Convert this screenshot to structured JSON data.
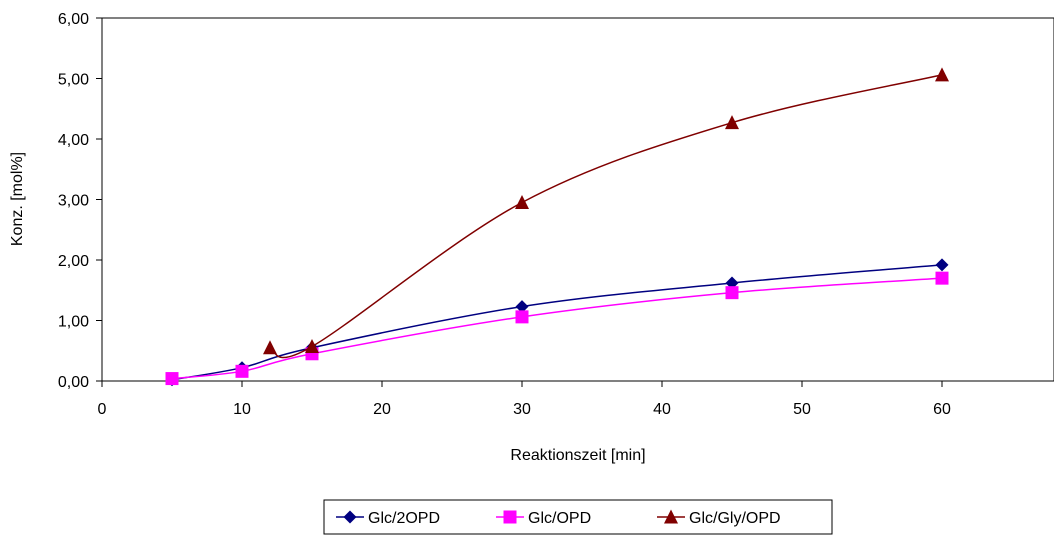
{
  "chart_data": {
    "type": "line",
    "title": "",
    "xlabel": "Reaktionszeit [min]",
    "ylabel": "Konz. [mol%]",
    "xlim": [
      0,
      68
    ],
    "ylim": [
      0,
      6
    ],
    "x_ticks": [
      0,
      10,
      20,
      30,
      40,
      50,
      60
    ],
    "x_tick_labels": [
      "0",
      "10",
      "20",
      "30",
      "40",
      "50",
      "60"
    ],
    "y_ticks": [
      0,
      1,
      2,
      3,
      4,
      5,
      6
    ],
    "y_tick_labels": [
      "0,00",
      "1,00",
      "2,00",
      "3,00",
      "4,00",
      "5,00",
      "6,00"
    ],
    "grid": false,
    "legend_position": "bottom",
    "series": [
      {
        "name": "Glc/2OPD",
        "color": "#000080",
        "marker": "diamond",
        "x": [
          5,
          10,
          15,
          30,
          45,
          60
        ],
        "y": [
          0.02,
          0.22,
          0.55,
          1.23,
          1.62,
          1.92
        ]
      },
      {
        "name": "Glc/OPD",
        "color": "#FF00FF",
        "marker": "square",
        "x": [
          5,
          10,
          15,
          30,
          45,
          60
        ],
        "y": [
          0.04,
          0.16,
          0.45,
          1.06,
          1.46,
          1.7
        ]
      },
      {
        "name": "Glc/Gly/OPD",
        "color": "#800000",
        "marker": "triangle",
        "x": [
          12,
          15,
          30,
          45,
          60
        ],
        "y": [
          0.55,
          0.57,
          2.95,
          4.27,
          5.06
        ]
      }
    ]
  }
}
